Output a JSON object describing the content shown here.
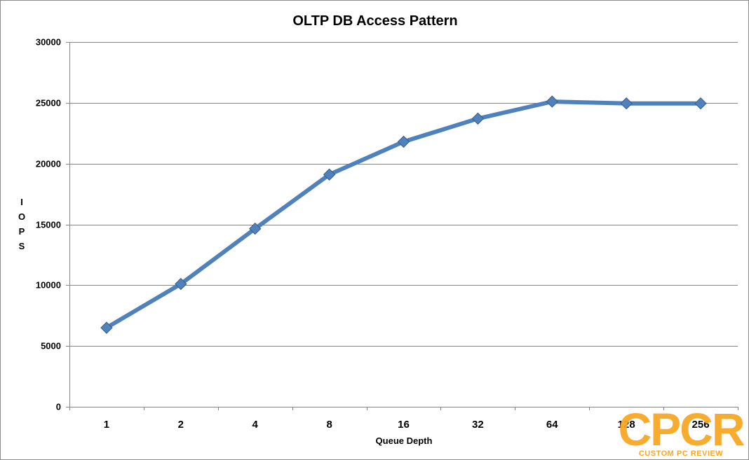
{
  "chart_data": {
    "type": "line",
    "title": "OLTP DB Access Pattern",
    "xlabel": "Queue Depth",
    "ylabel": "IOPS",
    "ylabel_letters": [
      "I",
      "O",
      "P",
      "S"
    ],
    "categories": [
      "1",
      "2",
      "4",
      "8",
      "16",
      "32",
      "64",
      "128",
      "256"
    ],
    "series": [
      {
        "values": [
          6500,
          10100,
          14650,
          19100,
          21800,
          23700,
          25100,
          24950,
          24950
        ]
      }
    ],
    "ylim": [
      0,
      30000
    ],
    "yticks": [
      "0",
      "5000",
      "10000",
      "15000",
      "20000",
      "25000",
      "30000"
    ],
    "grid": true,
    "legend": "none",
    "line_color": "#4f81bd",
    "marker": "diamond"
  },
  "watermark": {
    "logo_text": "CPCR",
    "tagline": "CUSTOM PC REVIEW",
    "color": "#f7a824"
  }
}
